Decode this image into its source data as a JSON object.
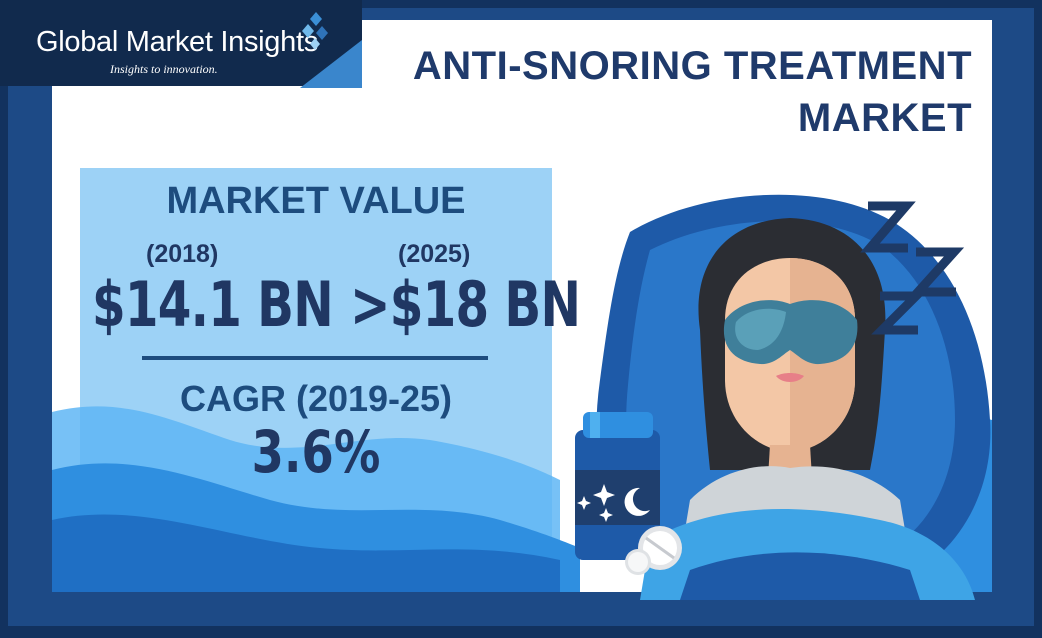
{
  "logo": {
    "name": "Global Market Insights",
    "tagline": "Insights to innovation."
  },
  "title": {
    "line1": "ANTI-SNORING TREATMENT",
    "line2": "MARKET"
  },
  "market_value": {
    "heading": "MARKET VALUE",
    "year_2018": "(2018)",
    "value_2018": "$14.1 BN",
    "year_2025": "(2025)",
    "value_2025": ">$18 BN"
  },
  "cagr": {
    "label": "CAGR (2019-25)",
    "value": "3.6%"
  },
  "colors": {
    "frame": "#12325f",
    "title_text": "#1f3a6b",
    "panel": "#9dd2f6",
    "wave": "#2f8fe0",
    "pillow": "#1e5aa8"
  },
  "icons": [
    "diamond-logo-icon",
    "sleeping-woman-illustration",
    "medicine-bottle-icon",
    "pill-icon",
    "zzz-icon"
  ]
}
